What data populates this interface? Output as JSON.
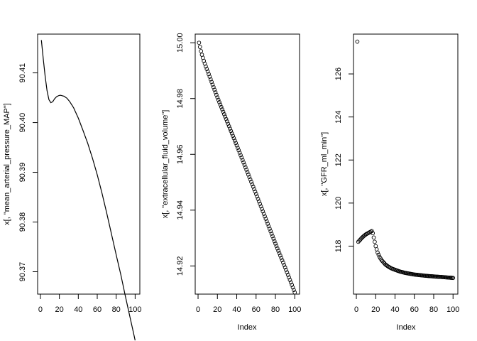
{
  "chart_data": [
    {
      "type": "line",
      "title": "",
      "xlabel": "",
      "ylabel": "x[, \"mean_arterial_pressure_MAP\"]",
      "xlim": [
        -2.96,
        104.96
      ],
      "ylim": [
        90.3655,
        90.4178
      ],
      "xticks": [
        0,
        20,
        40,
        60,
        80,
        100
      ],
      "yticks": [
        90.37,
        90.38,
        90.39,
        90.4,
        90.41
      ],
      "ytick_labels": [
        "90.37",
        "90.38",
        "90.39",
        "90.40",
        "90.41"
      ],
      "series": [
        {
          "x": [
            1,
            3,
            5,
            7,
            9,
            11,
            13,
            15,
            17,
            19,
            21,
            23,
            25,
            28,
            31,
            35,
            40,
            45,
            50,
            55,
            60,
            65,
            70,
            75,
            80,
            85,
            90,
            95,
            100
          ],
          "y": [
            90.4166,
            90.4128,
            90.4093,
            90.4064,
            90.4046,
            90.404,
            90.4042,
            90.4048,
            90.4052,
            90.4054,
            90.4055,
            90.4054,
            90.4053,
            90.4049,
            90.4042,
            90.403,
            90.4009,
            90.3984,
            90.3958,
            90.3928,
            90.3895,
            90.3858,
            90.3818,
            90.3776,
            90.3734,
            90.3693,
            90.3648,
            90.3605,
            90.3562
          ]
        }
      ]
    },
    {
      "type": "scatter",
      "title": "",
      "xlabel": "Index",
      "ylabel": "x[, \"extracellular_fluid_volume\"]",
      "xlim": [
        -2.96,
        104.96
      ],
      "ylim": [
        14.9099,
        15.0031
      ],
      "xticks": [
        0,
        20,
        40,
        60,
        80,
        100
      ],
      "yticks": [
        14.92,
        14.94,
        14.96,
        14.98,
        15.0
      ],
      "ytick_labels": [
        "14.92",
        "14.94",
        "14.96",
        "14.98",
        "15.00"
      ],
      "points": {
        "generator": "index 1..100",
        "anchors_x": [
          1,
          2,
          3,
          4,
          6,
          8,
          10,
          15,
          20,
          40,
          60,
          80,
          90,
          100
        ],
        "anchors_y": [
          15.0,
          14.9985,
          14.997,
          14.9957,
          14.9935,
          14.9915,
          14.9897,
          14.985,
          14.9804,
          14.9632,
          14.9458,
          14.928,
          14.9195,
          14.9105
        ]
      }
    },
    {
      "type": "scatter",
      "title": "",
      "xlabel": "Index",
      "ylabel": "x[, \"GFR_ml_min\"]",
      "xlim": [
        -2.96,
        104.96
      ],
      "ylim": [
        115.77,
        127.85
      ],
      "xticks": [
        0,
        20,
        40,
        60,
        80,
        100
      ],
      "yticks": [
        118,
        120,
        122,
        124,
        126
      ],
      "ytick_labels": [
        "118",
        "120",
        "122",
        "124",
        "126"
      ],
      "points": {
        "generator": "index 1..100",
        "first_point": [
          1,
          127.5
        ],
        "anchors_x": [
          2,
          4,
          6,
          8,
          10,
          12,
          14,
          16,
          17,
          18,
          19,
          20,
          22,
          24,
          26,
          28,
          30,
          33,
          36,
          40,
          45,
          50,
          55,
          60,
          70,
          80,
          90,
          100
        ],
        "anchors_y": [
          118.2,
          118.3,
          118.4,
          118.48,
          118.55,
          118.6,
          118.65,
          118.7,
          118.6,
          118.4,
          118.2,
          118.0,
          117.7,
          117.5,
          117.35,
          117.25,
          117.15,
          117.05,
          116.97,
          116.9,
          116.82,
          116.76,
          116.72,
          116.68,
          116.63,
          116.59,
          116.56,
          116.52
        ]
      }
    }
  ]
}
